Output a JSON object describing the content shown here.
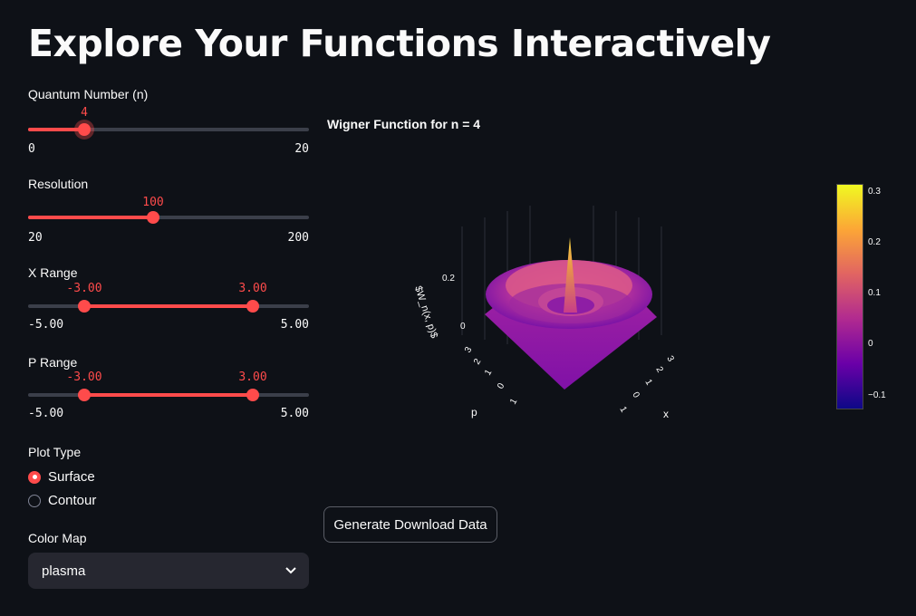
{
  "page": {
    "title": "Explore Your Functions Interactively"
  },
  "sidebar": {
    "quantum": {
      "label": "Quantum Number (n)",
      "value": "4",
      "min": "0",
      "max": "20",
      "fraction": 0.2
    },
    "resolution": {
      "label": "Resolution",
      "value": "100",
      "min": "20",
      "max": "200",
      "fraction": 0.444
    },
    "x_range": {
      "label": "X Range",
      "low": "-3.00",
      "high": "3.00",
      "min": "-5.00",
      "max": "5.00"
    },
    "p_range": {
      "label": "P Range",
      "low": "-3.00",
      "high": "3.00",
      "min": "-5.00",
      "max": "5.00"
    },
    "plot_type": {
      "label": "Plot Type",
      "options": [
        "Surface",
        "Contour"
      ],
      "selected": "Surface"
    },
    "color_map": {
      "label": "Color Map",
      "value": "plasma"
    }
  },
  "chart": {
    "title": "Wigner Function for n = 4",
    "zlabel": "$W_n(x, p)$",
    "xlabel": "x",
    "ylabel": "p",
    "z_ticks": [
      "0.2",
      "0"
    ],
    "x_ticks": [
      "3",
      "2",
      "1",
      "0",
      "1"
    ],
    "p_ticks": [
      "3",
      "2",
      "1",
      "0",
      "1"
    ],
    "colorbar_ticks": [
      "0.3",
      "0.2",
      "0.1",
      "0",
      "−0.1"
    ],
    "colorscale": "plasma"
  },
  "actions": {
    "download_label": "Generate Download Data"
  }
}
